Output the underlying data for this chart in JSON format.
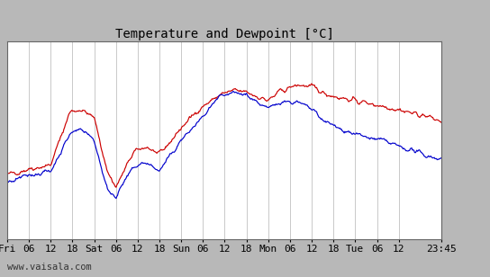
{
  "title": "Temperature and Dewpoint [°C]",
  "ylim": [
    -10,
    6
  ],
  "yticks": [
    -10,
    -8,
    -6,
    -4,
    -2,
    0,
    2,
    4,
    6
  ],
  "xtick_labels": [
    "Fri",
    "06",
    "12",
    "18",
    "Sat",
    "06",
    "12",
    "18",
    "Sun",
    "06",
    "12",
    "18",
    "Mon",
    "06",
    "12",
    "18",
    "Tue",
    "06",
    "12",
    "23:45"
  ],
  "plot_bg_color": "#ffffff",
  "grid_color": "#c0c0c0",
  "temp_color": "#cc0000",
  "dewp_color": "#0000cc",
  "watermark": "www.vaisala.com",
  "title_fontsize": 10,
  "tick_fontsize": 8,
  "watermark_fontsize": 7.5,
  "line_width": 0.85,
  "fig_bg_color": "#b8b8b8",
  "border_color": "#666666"
}
